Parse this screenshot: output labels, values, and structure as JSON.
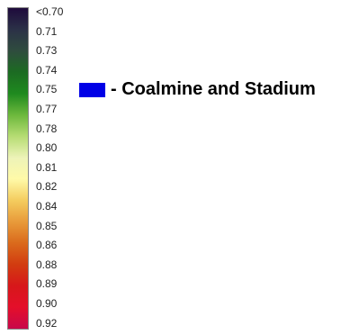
{
  "colorbar": {
    "ticks": [
      "<0.70",
      "0.71",
      "0.73",
      "0.74",
      "0.75",
      "0.77",
      "0.78",
      "0.80",
      "0.81",
      "0.82",
      "0.84",
      "0.85",
      "0.86",
      "0.88",
      "0.89",
      "0.90",
      "0.92"
    ],
    "gradient_colors": [
      "#1e0a3c",
      "#2b3147",
      "#2f4c3e",
      "#1c6b22",
      "#1f8a1f",
      "#6cb83c",
      "#b6dc73",
      "#edf3b8",
      "#fffaa8",
      "#f4cc5e",
      "#e89a3a",
      "#da6a1c",
      "#d23c10",
      "#d7171a",
      "#e40f2a",
      "#c8084a"
    ]
  },
  "legend": {
    "label": "- Coalmine and Stadium",
    "swatch_color": "#0000e6"
  }
}
